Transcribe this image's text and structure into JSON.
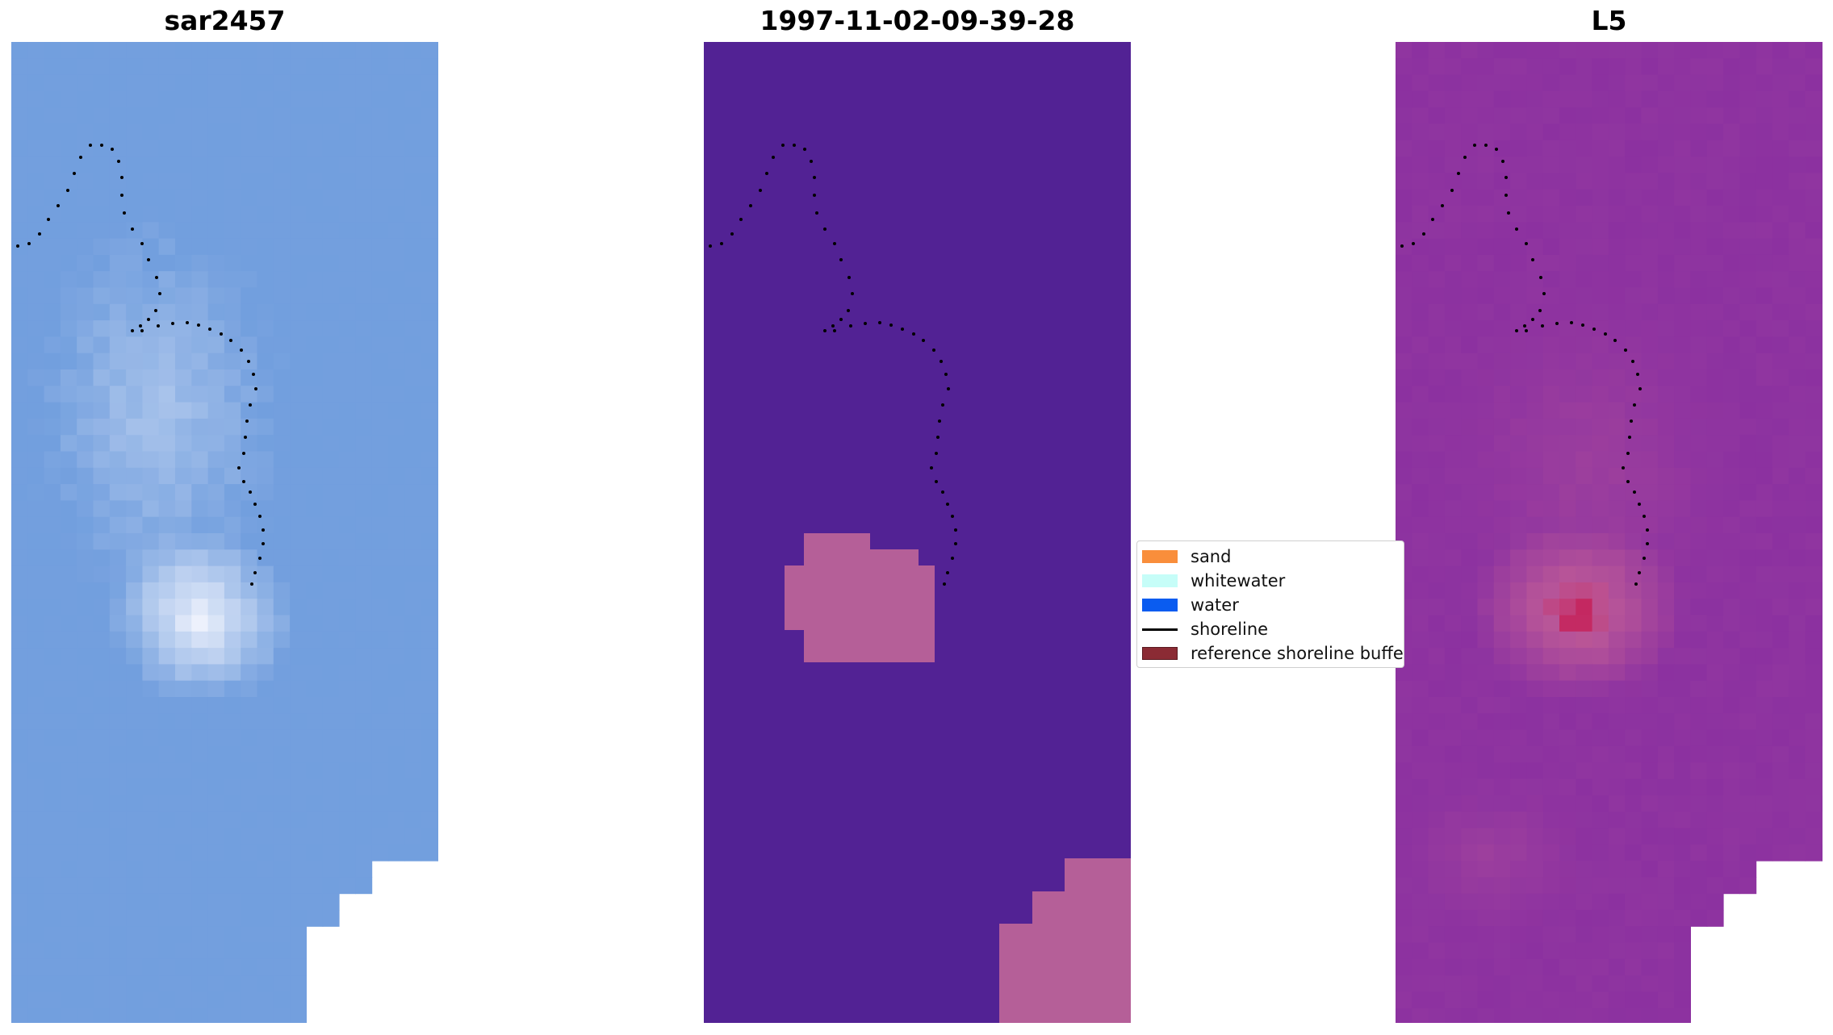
{
  "panels": [
    {
      "title": "sar2457",
      "palette": "blue"
    },
    {
      "title": "1997-11-02-09-39-28",
      "palette": "classes"
    },
    {
      "title": "L5",
      "palette": "magenta"
    }
  ],
  "legend": {
    "items": [
      {
        "label": "sand",
        "color": "#f98e3b",
        "kind": "patch"
      },
      {
        "label": "whitewater",
        "color": "#c6fdf8",
        "kind": "patch"
      },
      {
        "label": "water",
        "color": "#0a5cf0",
        "kind": "patch"
      },
      {
        "label": "shoreline",
        "color": "#000000",
        "kind": "line"
      },
      {
        "label": "reference shoreline buffe",
        "color": "#8b2b34",
        "kind": "patch"
      }
    ]
  },
  "colors": {
    "class_background": "#522294",
    "class_sand": "#b55f98",
    "blue_base": "#6f9fdc",
    "magenta_base": "#9a3fa0",
    "magenta_hot": "#c4003a"
  }
}
